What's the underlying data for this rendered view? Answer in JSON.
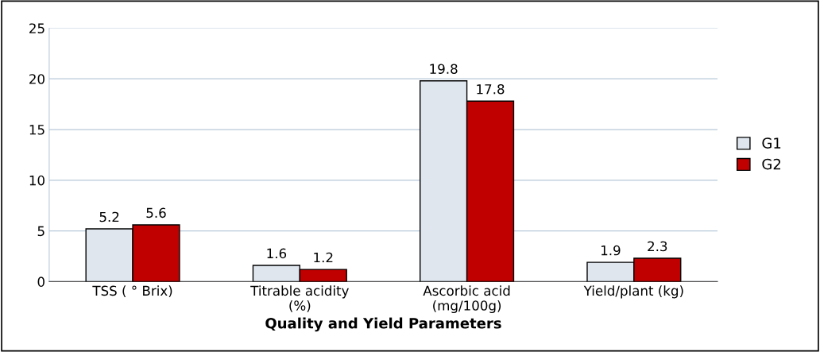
{
  "chart_data": {
    "type": "bar",
    "xlabel": "Quality and Yield Parameters",
    "categories": [
      "TSS ( ° Brix)",
      "Titrable acidity\n(%)",
      "Ascorbic acid\n(mg/100g)",
      "Yield/plant (kg)"
    ],
    "series": [
      {
        "name": "G1",
        "color": "#dfe6ee",
        "values": [
          5.2,
          1.6,
          19.8,
          1.9
        ]
      },
      {
        "name": "G2",
        "color": "#c00000",
        "values": [
          5.6,
          1.2,
          17.8,
          2.3
        ]
      }
    ],
    "ylim": [
      0,
      25
    ],
    "yticks": [
      0,
      5,
      10,
      15,
      20,
      25
    ],
    "grid": "y",
    "legend": "right",
    "data_labels": true
  }
}
